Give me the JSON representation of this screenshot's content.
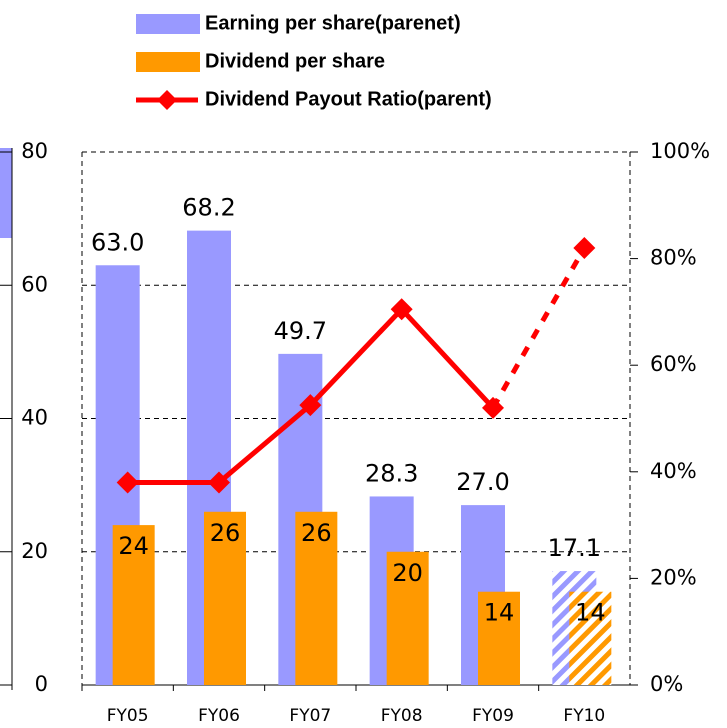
{
  "chart_data": {
    "type": "bar_line",
    "categories": [
      "FY05",
      "FY06",
      "FY07",
      "FY08",
      "FY09",
      "FY10"
    ],
    "series": [
      {
        "name": "Earning per share(parenet)",
        "color": "#9999ff",
        "type": "bar",
        "values": [
          63.0,
          68.2,
          49.7,
          28.3,
          27.0,
          17.1
        ],
        "value_labels": [
          "63.0",
          "68.2",
          "49.7",
          "28.3",
          "27.0",
          "17.1"
        ]
      },
      {
        "name": "Dividend per share",
        "color": "#ff9900",
        "type": "bar",
        "values": [
          24,
          26,
          26,
          20,
          14,
          14
        ]
      },
      {
        "name": "Dividend Payout Ratio(parent)",
        "color": "#ff0000",
        "type": "line",
        "axis": "y2",
        "values": [
          38,
          38,
          52.5,
          70.5,
          52,
          82
        ]
      }
    ],
    "ylim": [
      0,
      80
    ],
    "yticks": [
      0,
      20,
      40,
      60,
      80
    ],
    "y2lim": [
      0,
      100
    ],
    "y2ticks": [
      {
        "value": 0,
        "label": "0%"
      },
      {
        "value": 20,
        "label": "20%"
      },
      {
        "value": 40,
        "label": "40%"
      },
      {
        "value": 60,
        "label": "60%"
      },
      {
        "value": 80,
        "label": "80%"
      },
      {
        "value": 100,
        "label": "100%"
      }
    ],
    "grid": true,
    "forecast_last": true
  }
}
